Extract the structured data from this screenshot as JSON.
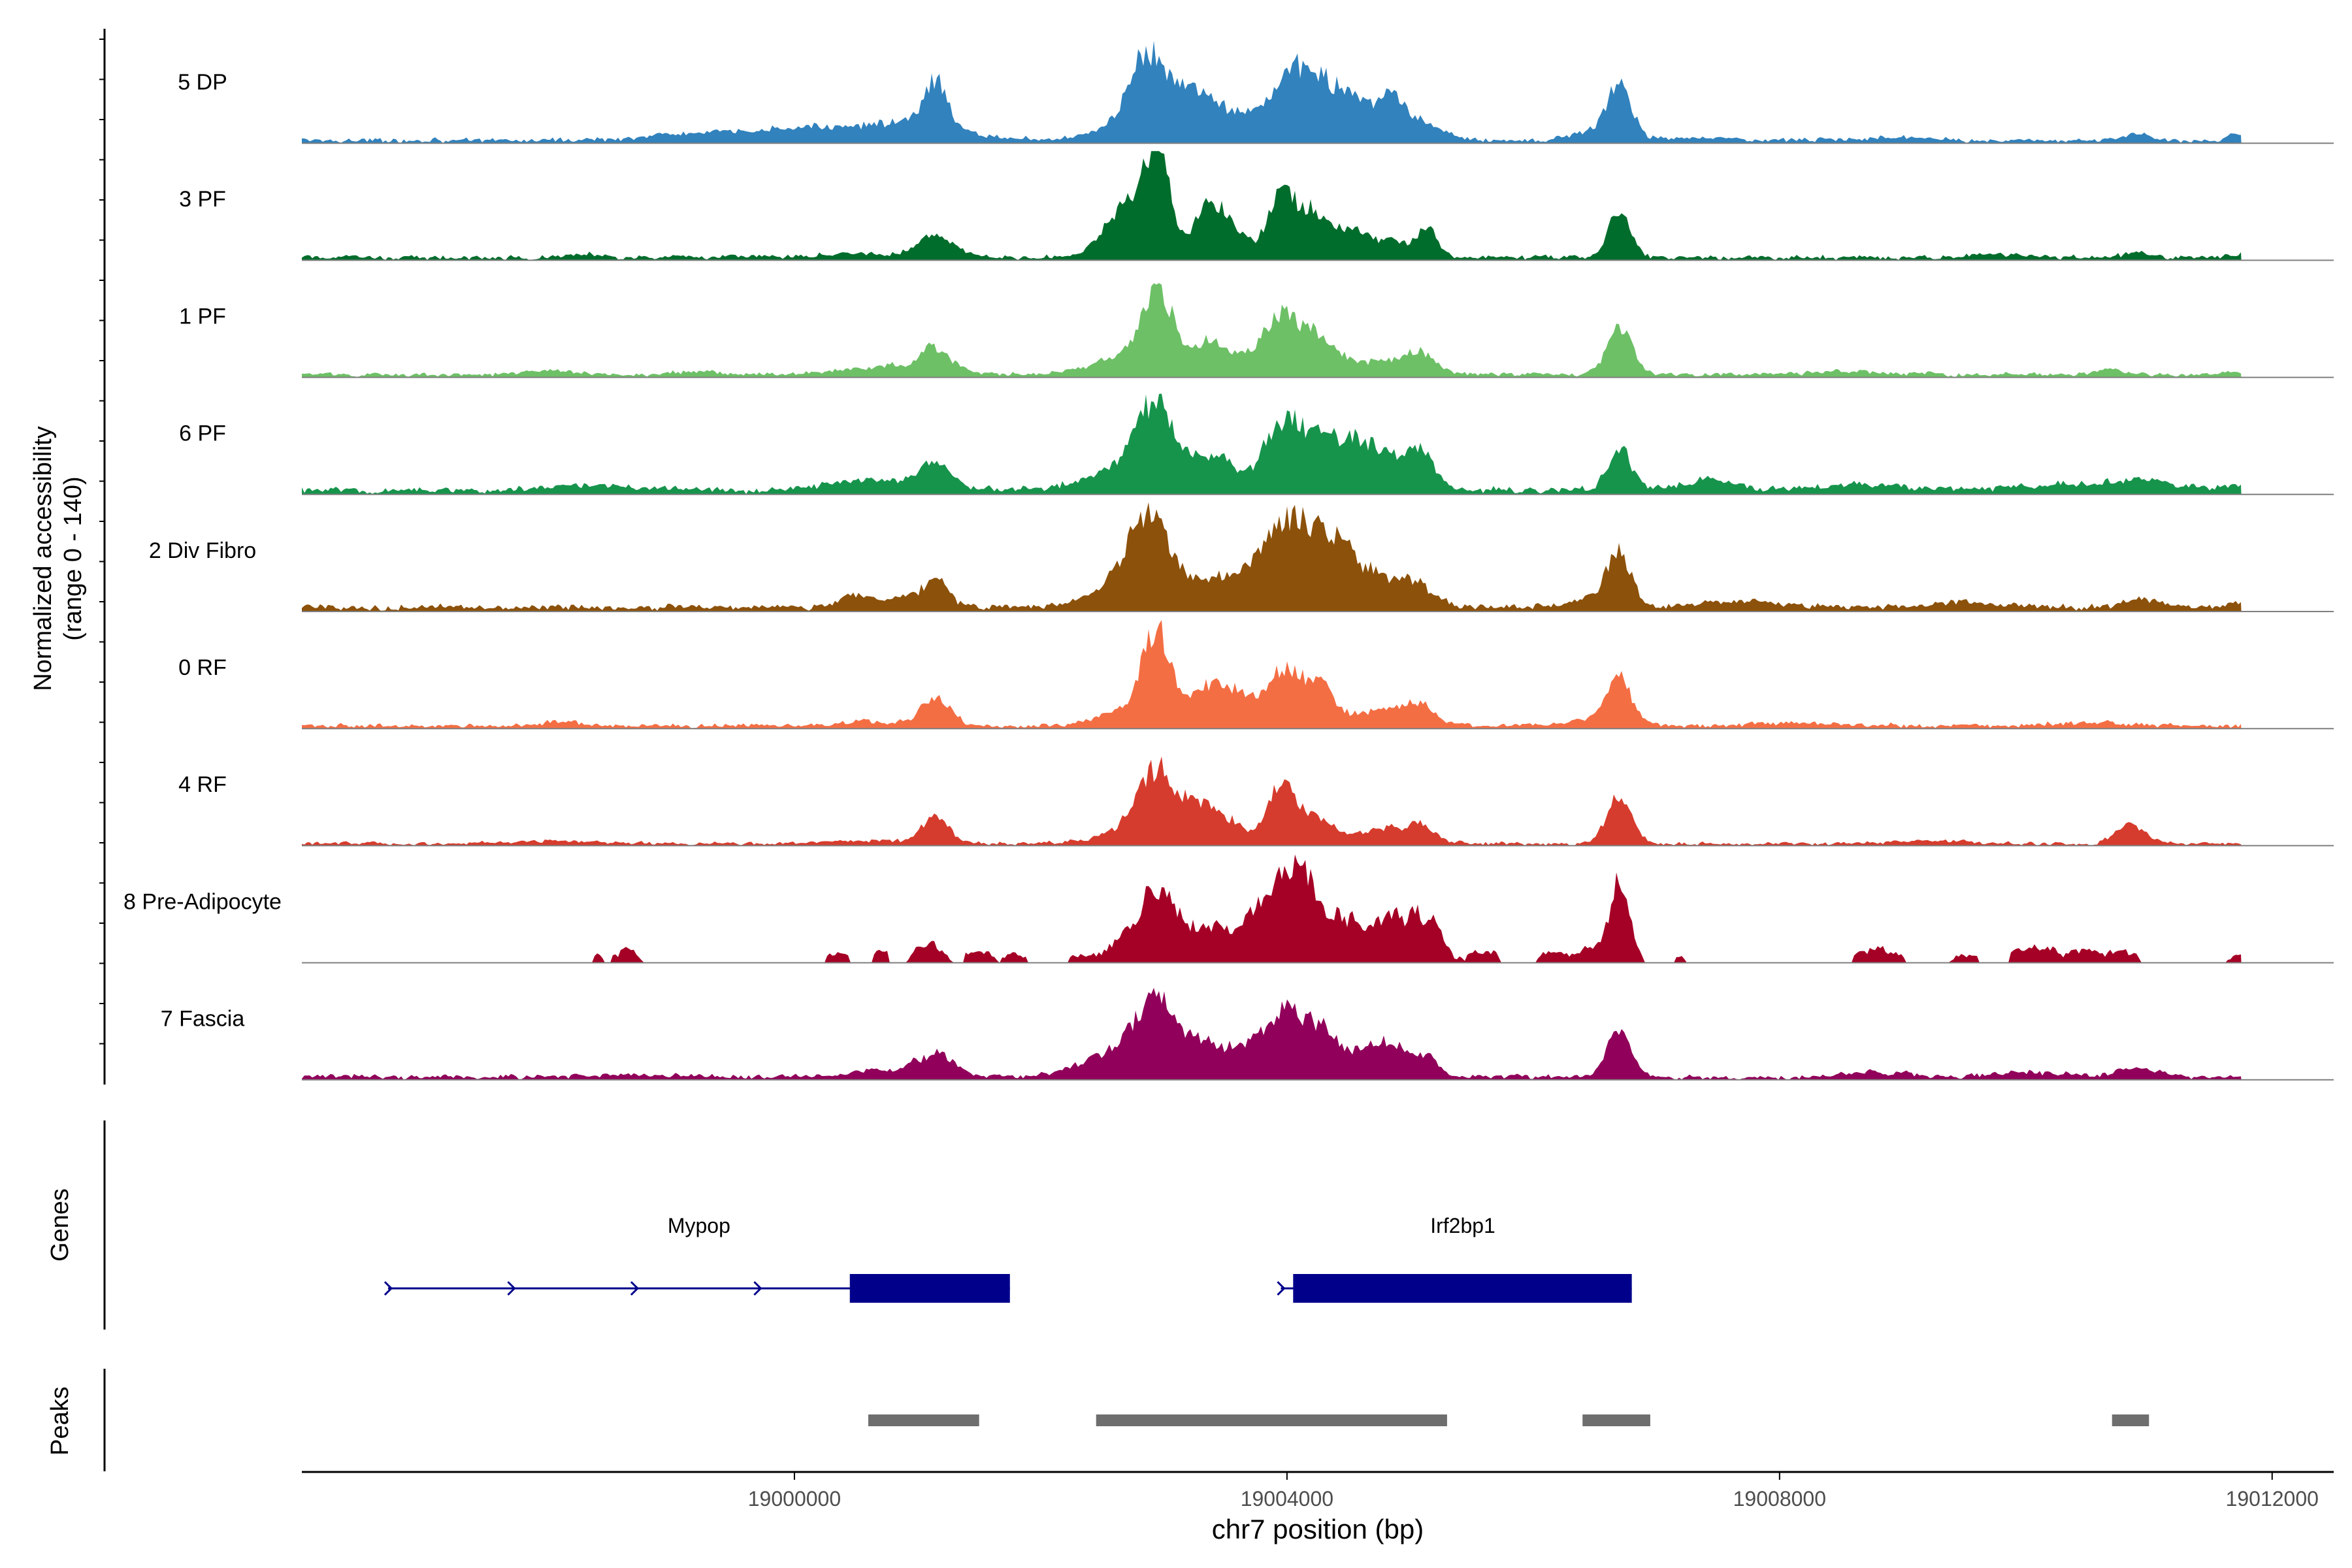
{
  "colors": {
    "axis": "#000000",
    "baseline": "#7f7f7f",
    "gene": "#00008b",
    "peak": "#6e6e6e",
    "background": "#ffffff"
  },
  "chart_data": {
    "type": "area",
    "title": "",
    "ylabel_line1": "Normalized accessibility",
    "ylabel_line2": "(range 0 - 140)",
    "yrange": [
      0,
      140
    ],
    "xlabel": "chr7 position (bp)",
    "xlim": [
      18996000,
      19012500
    ],
    "xticks": [
      19000000,
      19004000,
      19008000,
      19012000
    ],
    "xtick_labels": [
      "19000000",
      "19004000",
      "19008000",
      "19012000"
    ],
    "track_extent": [
      18996000,
      19011750
    ],
    "genes_label": "Genes",
    "peaks_label": "Peaks",
    "series": [
      {
        "name": "5 DP",
        "color": "#3182bd",
        "bg": 2,
        "noise": 3,
        "peaks": [
          [
            18999000,
            2,
            300
          ],
          [
            19000200,
            8,
            700
          ],
          [
            19001150,
            28,
            90
          ],
          [
            19001000,
            7,
            350
          ],
          [
            19002600,
            6,
            220
          ],
          [
            19002850,
            34,
            130
          ],
          [
            19003100,
            26,
            280
          ],
          [
            19003450,
            12,
            230
          ],
          [
            19004000,
            28,
            180
          ],
          [
            19004250,
            30,
            200
          ],
          [
            19004550,
            18,
            140
          ],
          [
            19004850,
            22,
            110
          ],
          [
            19005100,
            10,
            180
          ],
          [
            19006450,
            5,
            150
          ],
          [
            19006700,
            34,
            100
          ],
          [
            19007300,
            2,
            250
          ],
          [
            19009000,
            2,
            300
          ],
          [
            19010900,
            4,
            100
          ],
          [
            19011700,
            4,
            60
          ]
        ]
      },
      {
        "name": "3 PF",
        "color": "#006d2c",
        "bg": 2,
        "noise": 3,
        "peaks": [
          [
            18998300,
            2,
            200
          ],
          [
            19000500,
            3,
            250
          ],
          [
            19001150,
            14,
            150
          ],
          [
            19002700,
            30,
            180
          ],
          [
            19002950,
            55,
            110
          ],
          [
            19003350,
            30,
            100
          ],
          [
            19003550,
            20,
            110
          ],
          [
            19003950,
            38,
            110
          ],
          [
            19004200,
            28,
            120
          ],
          [
            19004500,
            14,
            140
          ],
          [
            19004850,
            10,
            180
          ],
          [
            19005150,
            16,
            80
          ],
          [
            19006700,
            30,
            90
          ],
          [
            19009800,
            2,
            250
          ],
          [
            19010900,
            3,
            100
          ],
          [
            19011700,
            2,
            100
          ]
        ]
      },
      {
        "name": "1 PF",
        "color": "#6dc066",
        "bg": 2,
        "noise": 2.5,
        "peaks": [
          [
            18998000,
            2,
            250
          ],
          [
            18999200,
            2,
            200
          ],
          [
            19000800,
            5,
            350
          ],
          [
            19001150,
            14,
            120
          ],
          [
            19002650,
            10,
            250
          ],
          [
            19002950,
            50,
            130
          ],
          [
            19003350,
            16,
            120
          ],
          [
            19003600,
            12,
            160
          ],
          [
            19003950,
            35,
            130
          ],
          [
            19004250,
            24,
            150
          ],
          [
            19004850,
            10,
            250
          ],
          [
            19005100,
            8,
            100
          ],
          [
            19006700,
            30,
            100
          ],
          [
            19008500,
            2,
            300
          ],
          [
            19010700,
            3,
            120
          ],
          [
            19011700,
            2,
            100
          ]
        ]
      },
      {
        "name": "6 PF",
        "color": "#17944c",
        "bg": 3,
        "noise": 4,
        "peaks": [
          [
            18998500,
            3,
            400
          ],
          [
            19000600,
            6,
            400
          ],
          [
            19001150,
            14,
            130
          ],
          [
            19002650,
            15,
            280
          ],
          [
            19002950,
            48,
            150
          ],
          [
            19003400,
            22,
            170
          ],
          [
            19003950,
            38,
            150
          ],
          [
            19004250,
            28,
            170
          ],
          [
            19004550,
            22,
            150
          ],
          [
            19004850,
            20,
            170
          ],
          [
            19005100,
            18,
            110
          ],
          [
            19006700,
            25,
            100
          ],
          [
            19007400,
            6,
            200
          ],
          [
            19008700,
            4,
            300
          ],
          [
            19010500,
            4,
            500
          ],
          [
            19011000,
            4,
            200
          ],
          [
            19011700,
            4,
            100
          ]
        ]
      },
      {
        "name": "2 Div Fibro",
        "color": "#8c510a",
        "bg": 3,
        "noise": 3,
        "peaks": [
          [
            19000450,
            6,
            100
          ],
          [
            19000800,
            6,
            250
          ],
          [
            19001150,
            16,
            100
          ],
          [
            19002650,
            12,
            250
          ],
          [
            19002900,
            50,
            180
          ],
          [
            19003400,
            18,
            150
          ],
          [
            19003700,
            14,
            140
          ],
          [
            19004000,
            48,
            180
          ],
          [
            19004350,
            36,
            190
          ],
          [
            19004750,
            16,
            220
          ],
          [
            19005050,
            10,
            150
          ],
          [
            19006450,
            6,
            150
          ],
          [
            19006700,
            33,
            100
          ],
          [
            19007700,
            4,
            300
          ],
          [
            19009500,
            3,
            300
          ],
          [
            19010950,
            5,
            150
          ],
          [
            19011700,
            4,
            80
          ]
        ]
      },
      {
        "name": "0 RF",
        "color": "#f46e44",
        "bg": 2,
        "noise": 2.5,
        "peaks": [
          [
            18998100,
            3,
            120
          ],
          [
            19000600,
            3,
            200
          ],
          [
            19001150,
            18,
            120
          ],
          [
            19002700,
            10,
            220
          ],
          [
            19002950,
            55,
            120
          ],
          [
            19003350,
            25,
            110
          ],
          [
            19003600,
            20,
            120
          ],
          [
            19003950,
            33,
            130
          ],
          [
            19004250,
            25,
            140
          ],
          [
            19004850,
            11,
            230
          ],
          [
            19005100,
            8,
            100
          ],
          [
            19006450,
            4,
            150
          ],
          [
            19006700,
            30,
            100
          ],
          [
            19008200,
            2,
            300
          ],
          [
            19010500,
            2,
            300
          ]
        ]
      },
      {
        "name": "4 RF",
        "color": "#d63c2d",
        "bg": 1.5,
        "noise": 2.5,
        "peaks": [
          [
            18998000,
            2,
            300
          ],
          [
            19000700,
            2,
            300
          ],
          [
            19001150,
            18,
            100
          ],
          [
            19002700,
            8,
            250
          ],
          [
            19002950,
            42,
            150
          ],
          [
            19003300,
            22,
            130
          ],
          [
            19003550,
            12,
            100
          ],
          [
            19003950,
            35,
            120
          ],
          [
            19004250,
            14,
            140
          ],
          [
            19004850,
            10,
            250
          ],
          [
            19005100,
            6,
            90
          ],
          [
            19006700,
            30,
            100
          ],
          [
            19010850,
            12,
            120
          ],
          [
            19009200,
            2,
            300
          ]
        ]
      },
      {
        "name": "8 Pre-Adipocyte",
        "color": "#a50026",
        "bg": 0,
        "noise": 4,
        "sparse": true,
        "peaks": [
          [
            18998650,
            8,
            90
          ],
          [
            18998400,
            5,
            40
          ],
          [
            19000350,
            6,
            80
          ],
          [
            19000700,
            6,
            60
          ],
          [
            19001100,
            15,
            100
          ],
          [
            19001500,
            6,
            100
          ],
          [
            19001800,
            6,
            80
          ],
          [
            19002300,
            4,
            80
          ],
          [
            19002600,
            8,
            150
          ],
          [
            19002950,
            45,
            160
          ],
          [
            19003350,
            20,
            130
          ],
          [
            19003600,
            12,
            100
          ],
          [
            19003950,
            45,
            200
          ],
          [
            19004200,
            30,
            150
          ],
          [
            19004500,
            18,
            100
          ],
          [
            19004850,
            28,
            180
          ],
          [
            19005150,
            20,
            120
          ],
          [
            19005600,
            8,
            100
          ],
          [
            19006150,
            6,
            100
          ],
          [
            19006450,
            10,
            80
          ],
          [
            19006700,
            50,
            80
          ],
          [
            19007200,
            4,
            60
          ],
          [
            19008800,
            8,
            150
          ],
          [
            19009500,
            6,
            100
          ],
          [
            19010100,
            10,
            150
          ],
          [
            19010500,
            8,
            100
          ],
          [
            19010800,
            10,
            80
          ],
          [
            19011700,
            6,
            60
          ]
        ]
      },
      {
        "name": "7 Fascia",
        "color": "#91005a",
        "bg": 2,
        "noise": 3.5,
        "peaks": [
          [
            18998700,
            2,
            300
          ],
          [
            19000700,
            4,
            250
          ],
          [
            19001150,
            14,
            150
          ],
          [
            19002300,
            4,
            250
          ],
          [
            19002700,
            15,
            250
          ],
          [
            19002950,
            42,
            160
          ],
          [
            19003350,
            20,
            150
          ],
          [
            19003650,
            14,
            130
          ],
          [
            19003950,
            38,
            140
          ],
          [
            19004250,
            30,
            140
          ],
          [
            19004600,
            12,
            150
          ],
          [
            19004850,
            18,
            150
          ],
          [
            19005150,
            10,
            90
          ],
          [
            19006700,
            28,
            100
          ],
          [
            19008800,
            3,
            200
          ],
          [
            19010000,
            3,
            300
          ],
          [
            19010900,
            6,
            150
          ]
        ]
      }
    ],
    "genes": [
      {
        "name": "Mypop",
        "start": 18996700,
        "end": 19001750,
        "exon_start": 19000450,
        "exon_end": 19001750,
        "arrows": [
          18996700,
          18997700,
          18998700,
          18999700
        ]
      },
      {
        "name": "Irf2bp1",
        "start": 19003950,
        "end": 19006800,
        "exon_start": 19004050,
        "exon_end": 19006800,
        "arrows": [
          19003950
        ]
      }
    ],
    "peak_regions": [
      [
        19000600,
        19001500
      ],
      [
        19002450,
        19005300
      ],
      [
        19006400,
        19006950
      ],
      [
        19010700,
        19011000
      ]
    ]
  }
}
